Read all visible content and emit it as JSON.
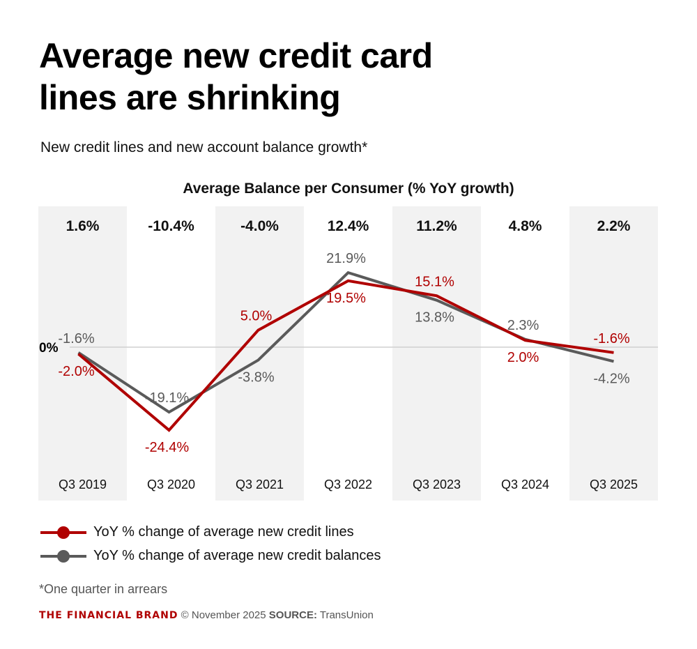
{
  "title_line1": "Average new credit card",
  "title_line2": "lines are shrinking",
  "subtitle": "New credit lines and new account balance growth*",
  "chart_data": {
    "type": "line",
    "title": "Average Balance per Consumer (% YoY growth)",
    "categories": [
      "Q3 2019",
      "Q3 2020",
      "Q3 2021",
      "Q3 2022",
      "Q3 2023",
      "Q3 2024",
      "Q3 2025"
    ],
    "top_values": [
      "1.6%",
      "-10.4%",
      "-4.0%",
      "12.4%",
      "11.2%",
      "4.8%",
      "2.2%"
    ],
    "zero_label": "0%",
    "series": [
      {
        "name": "YoY % change of average new credit lines",
        "color": "#b00000",
        "values": [
          -2.0,
          -24.4,
          5.0,
          19.5,
          15.1,
          2.0,
          -1.6
        ]
      },
      {
        "name": "YoY % change of average new credit balances",
        "color": "#5a5a5a",
        "values": [
          -1.6,
          -19.1,
          -3.8,
          21.9,
          13.8,
          2.3,
          -4.2
        ]
      }
    ],
    "band_color": "#f2f2f2",
    "grid": false,
    "legend": "bottom-left"
  },
  "footnote": "*One quarter in arrears",
  "footer": {
    "brand": "THE FINANCIAL BRAND",
    "copyright": "© November 2025",
    "source_label": "SOURCE:",
    "source": "TransUnion"
  }
}
